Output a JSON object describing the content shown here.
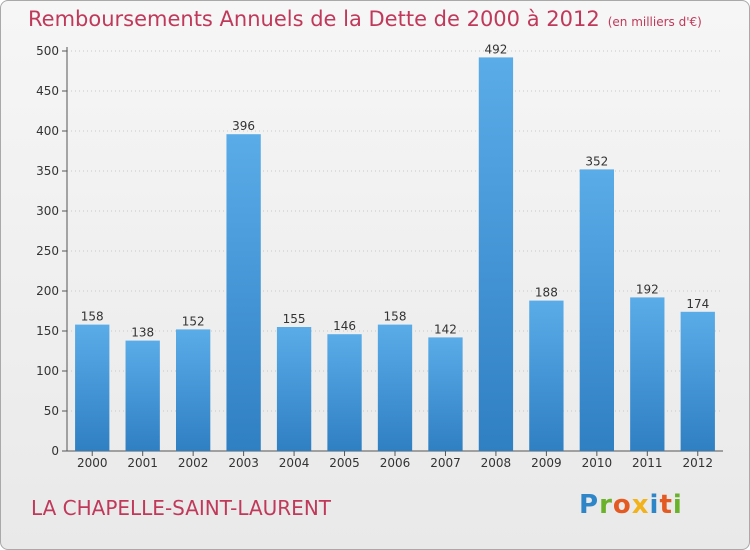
{
  "chart_data": {
    "type": "bar",
    "title": "Remboursements Annuels de la Dette de 2000 à 2012",
    "unit_label": "(en milliers d'€)",
    "categories": [
      "2000",
      "2001",
      "2002",
      "2003",
      "2004",
      "2005",
      "2006",
      "2007",
      "2008",
      "2009",
      "2010",
      "2011",
      "2012"
    ],
    "values": [
      158,
      138,
      152,
      396,
      155,
      146,
      158,
      142,
      492,
      188,
      352,
      192,
      174
    ],
    "ylim": [
      0,
      500
    ],
    "yticks": [
      0,
      50,
      100,
      150,
      200,
      250,
      300,
      350,
      400,
      450,
      500
    ],
    "grid": true,
    "bar_color": "#3d8fd6"
  },
  "footer": {
    "city": "LA CHAPELLE-SAINT-LAURENT",
    "logo_letters": [
      "P",
      "r",
      "o",
      "x",
      "i",
      "t",
      "i"
    ]
  }
}
